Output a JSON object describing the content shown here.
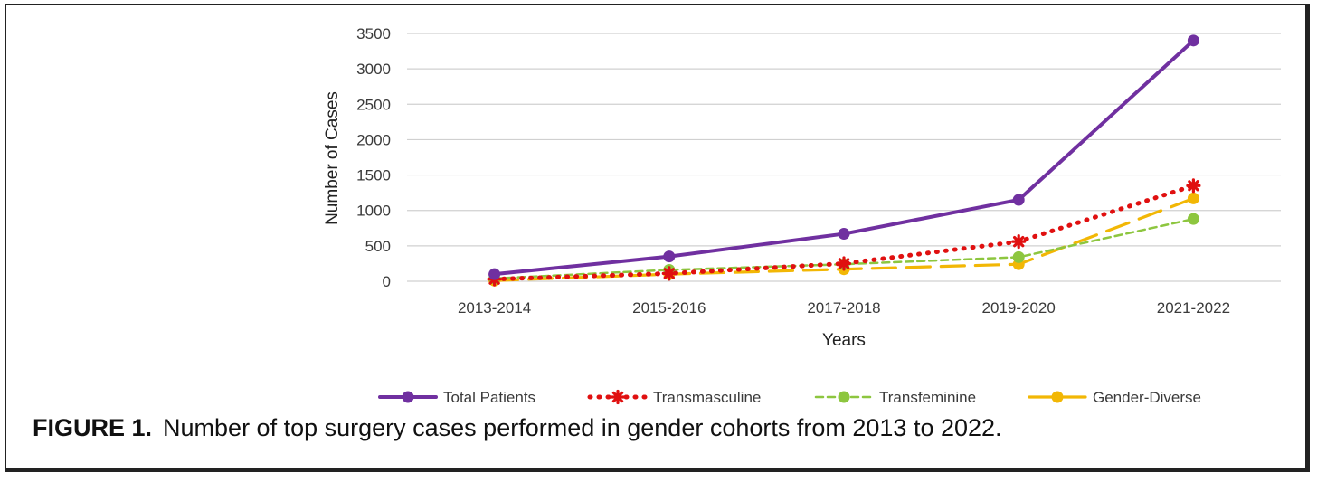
{
  "caption": {
    "label": "FIGURE 1.",
    "text": "Number of top surgery cases performed in gender cohorts from 2013 to 2022."
  },
  "chart_data": {
    "type": "line",
    "categories": [
      "2013-2014",
      "2015-2016",
      "2017-2018",
      "2019-2020",
      "2021-2022"
    ],
    "xlabel": "Years",
    "ylabel": "Number of Cases",
    "ylim": [
      0,
      3500
    ],
    "yticks": [
      0,
      500,
      1000,
      1500,
      2000,
      2500,
      3000,
      3500
    ],
    "grid": true,
    "legend_position": "bottom",
    "series": [
      {
        "name": "Total Patients",
        "values": [
          100,
          350,
          670,
          1150,
          3400
        ],
        "color": "#7030a0",
        "style": "solid"
      },
      {
        "name": "Transmasculine",
        "values": [
          30,
          110,
          250,
          560,
          1350
        ],
        "color": "#e01010",
        "style": "dotted"
      },
      {
        "name": "Transfeminine",
        "values": [
          40,
          160,
          240,
          340,
          880
        ],
        "color": "#8dc63f",
        "style": "dashed"
      },
      {
        "name": "Gender-Diverse",
        "values": [
          10,
          100,
          170,
          240,
          1170
        ],
        "color": "#f2b705",
        "style": "longdash"
      }
    ]
  }
}
